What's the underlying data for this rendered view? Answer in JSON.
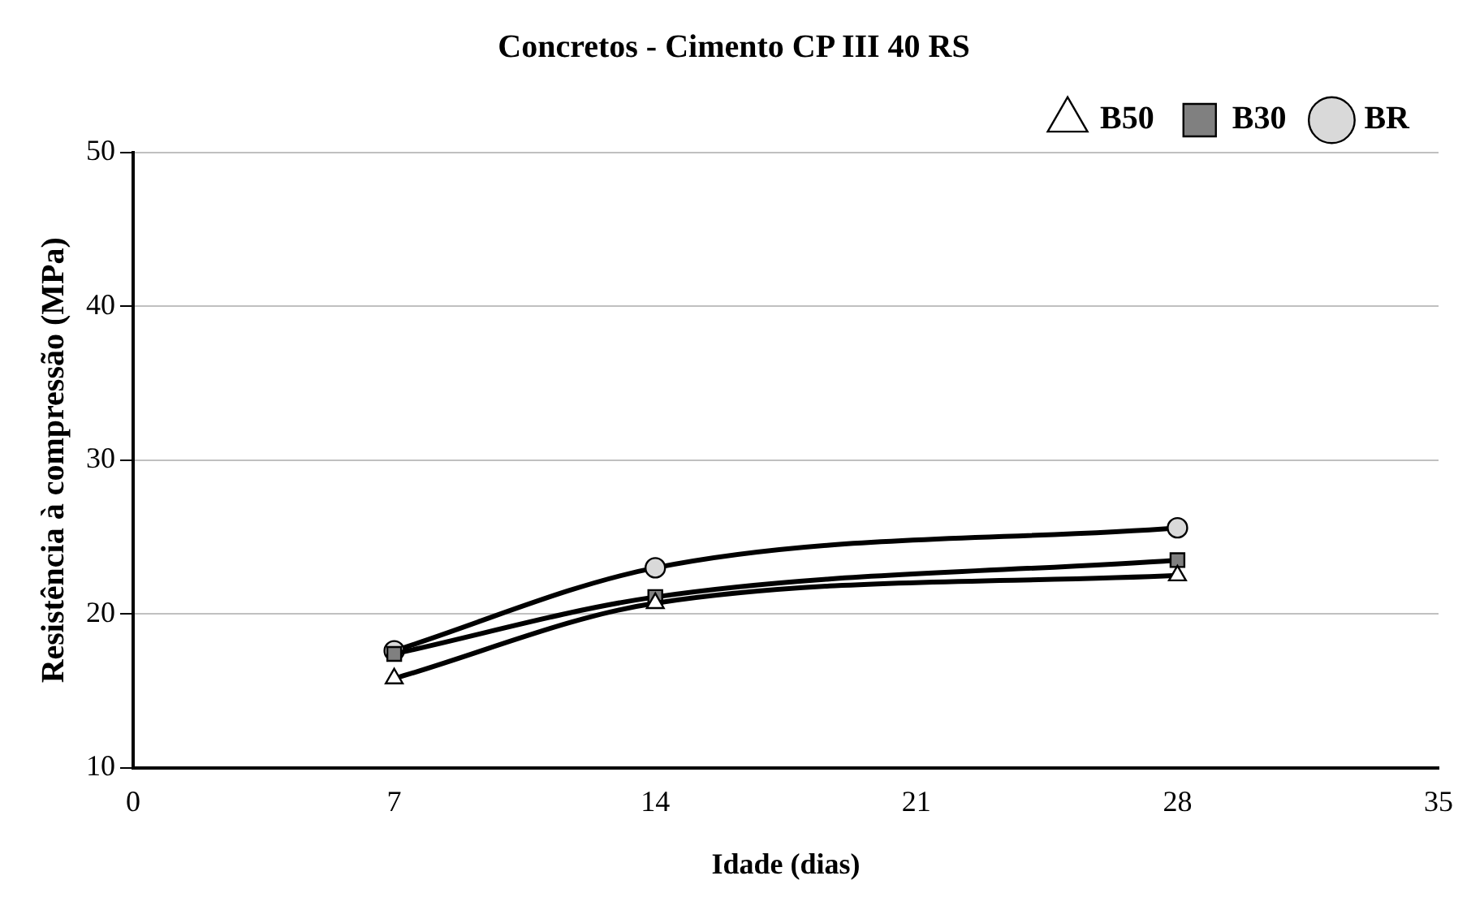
{
  "chart_data": {
    "type": "line",
    "title": "Concretos - Cimento CP III 40 RS",
    "xlabel": "Idade (dias)",
    "ylabel": "Resistência à compressão (MPa)",
    "x": [
      7,
      14,
      28
    ],
    "series": [
      {
        "name": "BR",
        "color": "#d9d9d9",
        "marker": "circle",
        "values": [
          17.6,
          23.0,
          25.6
        ]
      },
      {
        "name": "B30",
        "color": "#808080",
        "marker": "square",
        "values": [
          17.4,
          21.1,
          23.5
        ]
      },
      {
        "name": "B50",
        "color": "#ffffff",
        "marker": "triangle",
        "values": [
          15.8,
          20.7,
          22.5
        ]
      }
    ],
    "xlim": [
      0,
      35
    ],
    "xticks": [
      0,
      7,
      14,
      21,
      28,
      35
    ],
    "ylim": [
      10,
      50
    ],
    "yticks": [
      10,
      20,
      30,
      40,
      50
    ],
    "grid": "y",
    "legend": "top right"
  }
}
